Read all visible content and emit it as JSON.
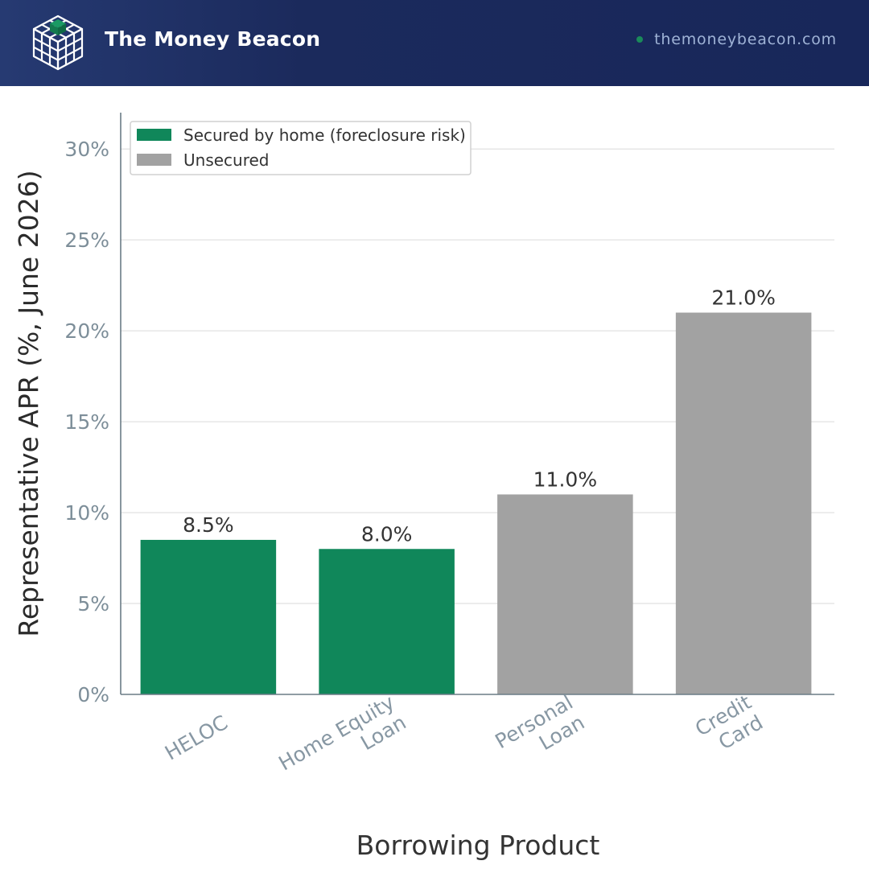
{
  "header": {
    "brand": "The Money Beacon",
    "site": "themoneybeacon.com",
    "logo_icon": "cube-grid-icon",
    "accent": "#1a8a5a"
  },
  "chart_data": {
    "type": "bar",
    "categories": [
      [
        "HELOC"
      ],
      [
        "Home Equity",
        "Loan"
      ],
      [
        "Personal",
        "Loan"
      ],
      [
        "Credit",
        "Card"
      ]
    ],
    "values": [
      8.5,
      8.0,
      11.0,
      21.0
    ],
    "value_labels": [
      "8.5%",
      "8.0%",
      "11.0%",
      "21.0%"
    ],
    "series_of_bar": [
      0,
      0,
      1,
      1
    ],
    "series": [
      {
        "name": "Secured by home (foreclosure risk)",
        "color": "#10875a"
      },
      {
        "name": "Unsecured",
        "color": "#a2a2a2"
      }
    ],
    "xlabel": "Borrowing Product",
    "ylabel": "Representative APR (%, June 2026)",
    "ylim": [
      0,
      32
    ],
    "yticks": [
      0,
      5,
      10,
      15,
      20,
      25,
      30
    ],
    "ytick_labels": [
      "0%",
      "5%",
      "10%",
      "15%",
      "20%",
      "25%",
      "30%"
    ],
    "grid": true,
    "legend_position": "top-left"
  }
}
